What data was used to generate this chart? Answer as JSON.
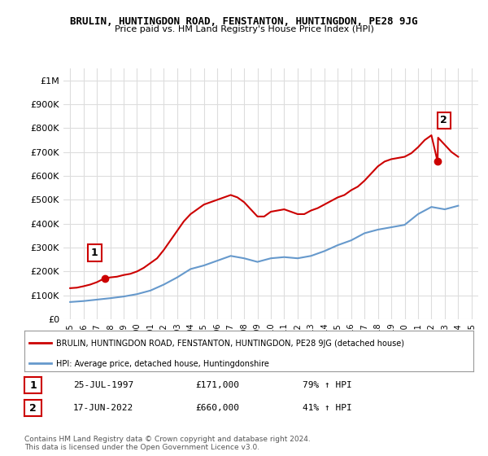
{
  "title": "BRULIN, HUNTINGDON ROAD, FENSTANTON, HUNTINGDON, PE28 9JG",
  "subtitle": "Price paid vs. HM Land Registry's House Price Index (HPI)",
  "legend_line1": "BRULIN, HUNTINGDON ROAD, FENSTANTON, HUNTINGDON, PE28 9JG (detached house)",
  "legend_line2": "HPI: Average price, detached house, Huntingdonshire",
  "annotation1": {
    "num": "1",
    "date": "25-JUL-1997",
    "price": "£171,000",
    "pct": "79% ↑ HPI"
  },
  "annotation2": {
    "num": "2",
    "date": "17-JUN-2022",
    "price": "£660,000",
    "pct": "41% ↑ HPI"
  },
  "footer": "Contains HM Land Registry data © Crown copyright and database right 2024.\nThis data is licensed under the Open Government Licence v3.0.",
  "house_color": "#cc0000",
  "hpi_color": "#6699cc",
  "ylim": [
    0,
    1050000
  ],
  "yticks": [
    0,
    100000,
    200000,
    300000,
    400000,
    500000,
    600000,
    700000,
    800000,
    900000,
    1000000
  ],
  "ytick_labels": [
    "£0",
    "£100K",
    "£200K",
    "£300K",
    "£400K",
    "£500K",
    "£600K",
    "£700K",
    "£800K",
    "£900K",
    "£1M"
  ],
  "background_color": "#ffffff",
  "grid_color": "#dddddd",
  "sale_points": [
    {
      "year": 1997.57,
      "price": 171000
    },
    {
      "year": 2022.46,
      "price": 660000
    }
  ],
  "hpi_years": [
    1995,
    1996,
    1997,
    1998,
    1999,
    2000,
    2001,
    2002,
    2003,
    2004,
    2005,
    2006,
    2007,
    2008,
    2009,
    2010,
    2011,
    2012,
    2013,
    2014,
    2015,
    2016,
    2017,
    2018,
    2019,
    2020,
    2021,
    2022,
    2023,
    2024
  ],
  "hpi_values": [
    72000,
    76000,
    82000,
    88000,
    95000,
    105000,
    120000,
    145000,
    175000,
    210000,
    225000,
    245000,
    265000,
    255000,
    240000,
    255000,
    260000,
    255000,
    265000,
    285000,
    310000,
    330000,
    360000,
    375000,
    385000,
    395000,
    440000,
    470000,
    460000,
    475000
  ],
  "house_years": [
    1995.0,
    1995.5,
    1996.0,
    1996.5,
    1997.0,
    1997.57,
    1998.0,
    1998.5,
    1999.0,
    1999.5,
    2000.0,
    2000.5,
    2001.0,
    2001.5,
    2002.0,
    2002.5,
    2003.0,
    2003.5,
    2004.0,
    2004.5,
    2005.0,
    2005.5,
    2006.0,
    2006.5,
    2007.0,
    2007.5,
    2008.0,
    2008.5,
    2009.0,
    2009.5,
    2010.0,
    2010.5,
    2011.0,
    2011.5,
    2012.0,
    2012.5,
    2013.0,
    2013.5,
    2014.0,
    2014.5,
    2015.0,
    2015.5,
    2016.0,
    2016.5,
    2017.0,
    2017.5,
    2018.0,
    2018.5,
    2019.0,
    2019.5,
    2020.0,
    2020.5,
    2021.0,
    2021.5,
    2022.0,
    2022.46,
    2022.5,
    2023.0,
    2023.5,
    2024.0
  ],
  "house_values": [
    130000,
    132000,
    138000,
    145000,
    155000,
    171000,
    175000,
    178000,
    185000,
    190000,
    200000,
    215000,
    235000,
    255000,
    290000,
    330000,
    370000,
    410000,
    440000,
    460000,
    480000,
    490000,
    500000,
    510000,
    520000,
    510000,
    490000,
    460000,
    430000,
    430000,
    450000,
    455000,
    460000,
    450000,
    440000,
    440000,
    455000,
    465000,
    480000,
    495000,
    510000,
    520000,
    540000,
    555000,
    580000,
    610000,
    640000,
    660000,
    670000,
    675000,
    680000,
    695000,
    720000,
    750000,
    770000,
    660000,
    760000,
    730000,
    700000,
    680000
  ]
}
